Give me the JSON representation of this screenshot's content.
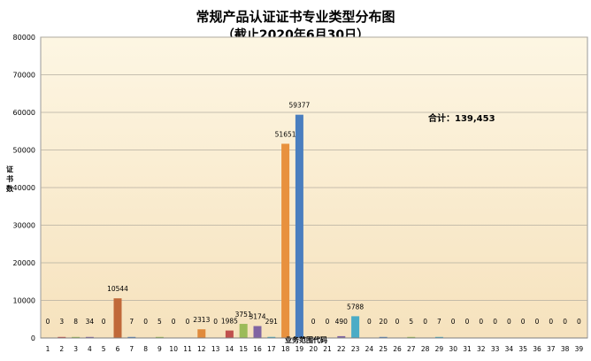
{
  "chart_data": {
    "type": "bar",
    "title": "常规产品认证证书专业类型分布图",
    "subtitle": "（截止2020年6月30日）",
    "ylabel": "证书数",
    "xlabel": "业务范围代码",
    "ylim": [
      0,
      80000
    ],
    "yticks": [
      0,
      10000,
      20000,
      30000,
      40000,
      50000,
      60000,
      70000,
      80000
    ],
    "grid": true,
    "legend": "none",
    "annotation": "合计：139,453",
    "categories": [
      "1",
      "2",
      "3",
      "4",
      "5",
      "6",
      "7",
      "8",
      "9",
      "10",
      "11",
      "12",
      "13",
      "14",
      "15",
      "16",
      "17",
      "18",
      "19",
      "20",
      "21",
      "22",
      "23",
      "24",
      "25",
      "26",
      "27",
      "28",
      "29",
      "30",
      "31",
      "32",
      "33",
      "34",
      "35",
      "36",
      "37",
      "38",
      "39"
    ],
    "values": [
      0,
      3,
      8,
      34,
      0,
      10544,
      7,
      0,
      5,
      0,
      0,
      2313,
      0,
      1985,
      3751,
      3174,
      291,
      51651,
      59377,
      0,
      0,
      490,
      5788,
      0,
      20,
      0,
      5,
      0,
      7,
      0,
      0,
      0,
      0,
      0,
      0,
      0,
      0,
      0,
      0
    ],
    "colors": [
      "#4f81bd",
      "#c0504d",
      "#9bbb59",
      "#8064a2",
      "#4bacc6",
      "#c0693a",
      "#4f81bd",
      "#c0504d",
      "#9bbb59",
      "#8064a2",
      "#4bacc6",
      "#e08a3c",
      "#4f81bd",
      "#c0504d",
      "#9bbb59",
      "#8064a2",
      "#4bacc6",
      "#e8913e",
      "#4a7ebf",
      "#c0504d",
      "#9bbb59",
      "#8064a2",
      "#4bacc6",
      "#f79646",
      "#4f81bd",
      "#c0504d",
      "#9bbb59",
      "#8064a2",
      "#4bacc6",
      "#f79646",
      "#4f81bd",
      "#c0504d",
      "#9bbb59",
      "#8064a2",
      "#4bacc6",
      "#f79646",
      "#4f81bd",
      "#c0504d",
      "#9bbb59"
    ],
    "plot_background": [
      "#fdf6e3",
      "#f6e2bd"
    ]
  }
}
